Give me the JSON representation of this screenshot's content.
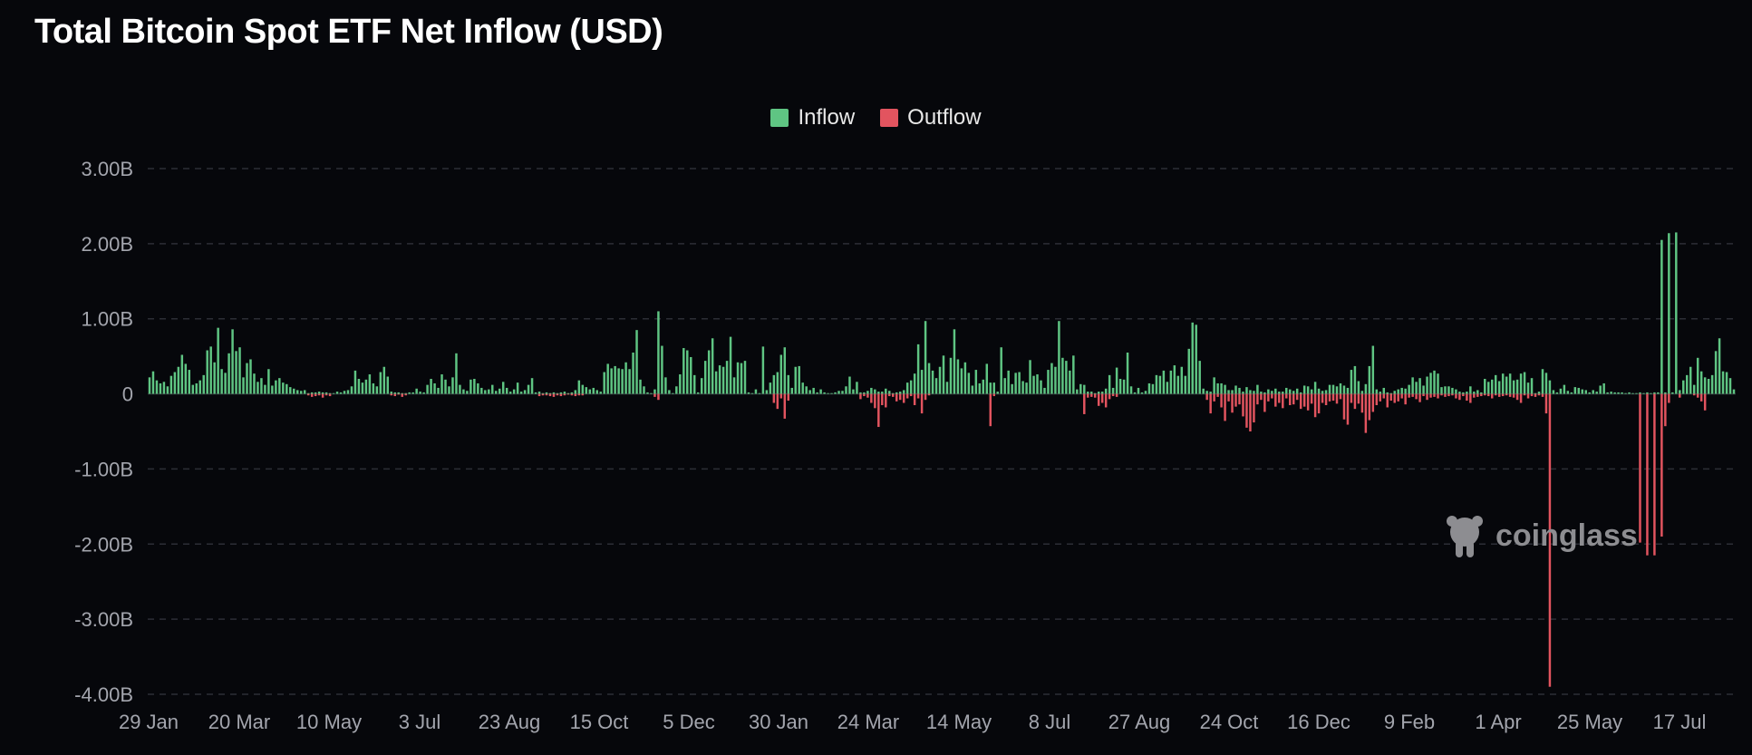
{
  "title": "Total Bitcoin Spot ETF Net Inflow (USD)",
  "legend": [
    {
      "label": "Inflow",
      "color": "#5fc583"
    },
    {
      "label": "Outflow",
      "color": "#e2545f"
    }
  ],
  "watermark": "coinglass",
  "chart_data": {
    "type": "bar",
    "title": "Total Bitcoin Spot ETF Net Inflow (USD)",
    "ylim": [
      -4.0,
      3.0
    ],
    "y_unit": "B",
    "yticks": [
      {
        "value": 3,
        "label": "3.00B"
      },
      {
        "value": 2,
        "label": "2.00B"
      },
      {
        "value": 1,
        "label": "1.00B"
      },
      {
        "value": 0,
        "label": "0"
      },
      {
        "value": -1,
        "label": "-1.00B"
      },
      {
        "value": -2,
        "label": "-2.00B"
      },
      {
        "value": -3,
        "label": "-3.00B"
      },
      {
        "value": -4,
        "label": "-4.00B"
      }
    ],
    "xticks": [
      "29 Jan",
      "20 Mar",
      "10 May",
      "3 Jul",
      "23 Aug",
      "15 Oct",
      "5 Dec",
      "30 Jan",
      "24 Mar",
      "14 May",
      "8 Jul",
      "27 Aug",
      "24 Oct",
      "16 Dec",
      "9 Feb",
      "1 Apr",
      "25 May",
      "17 Jul"
    ],
    "grid": true,
    "legend_position": "top-center",
    "series": [
      {
        "name": "Inflow",
        "color": "#5fc583",
        "values": [
          0.22,
          0.3,
          0.18,
          0.14,
          0.16,
          0.1,
          0.24,
          0.29,
          0.36,
          0.52,
          0.4,
          0.32,
          0.12,
          0.14,
          0.18,
          0.25,
          0.58,
          0.63,
          0.42,
          0.88,
          0.33,
          0.28,
          0.54,
          0.86,
          0.57,
          0.62,
          0.22,
          0.41,
          0.46,
          0.27,
          0.16,
          0.21,
          0.12,
          0.33,
          0.11,
          0.18,
          0.21,
          0.15,
          0.13,
          0.09,
          0.07,
          0.05,
          0.04,
          0.05,
          0.01,
          0.02,
          0.02,
          0.03,
          0.02,
          0.02,
          0.01,
          0.01,
          0.03,
          0.02,
          0.04,
          0.05,
          0.1,
          0.31,
          0.2,
          0.15,
          0.19,
          0.26,
          0.14,
          0.1,
          0.29,
          0.36,
          0.23,
          0.03,
          0.02,
          0.02,
          0.01,
          0.01,
          0.02,
          0.02,
          0.07,
          0.03,
          0.02,
          0.12,
          0.2,
          0.14,
          0.08,
          0.26,
          0.19,
          0.1,
          0.22,
          0.54,
          0.12,
          0.06,
          0.04,
          0.19,
          0.2,
          0.14,
          0.08,
          0.05,
          0.06,
          0.12,
          0.04,
          0.07,
          0.16,
          0.08,
          0.03,
          0.06,
          0.15,
          0.03,
          0.05,
          0.12,
          0.21,
          0.02,
          0.03,
          0.01,
          0.02,
          0.01,
          0.02,
          0.01,
          0.02,
          0.03,
          0.01,
          0.02,
          0.05,
          0.18,
          0.12,
          0.09,
          0.06,
          0.08,
          0.05,
          0.03,
          0.29,
          0.4,
          0.34,
          0.37,
          0.34,
          0.33,
          0.42,
          0.33,
          0.55,
          0.85,
          0.19,
          0.1,
          0.02,
          0.01,
          0.06,
          1.1,
          0.64,
          0.22,
          0.05,
          0.01,
          0.1,
          0.26,
          0.61,
          0.58,
          0.49,
          0.25,
          0.02,
          0.21,
          0.44,
          0.58,
          0.74,
          0.3,
          0.38,
          0.36,
          0.44,
          0.76,
          0.22,
          0.42,
          0.41,
          0.44,
          0.02,
          0.01,
          0.06,
          0.01,
          0.63,
          0.05,
          0.15,
          0.25,
          0.29,
          0.52,
          0.62,
          0.25,
          0.08,
          0.36,
          0.37,
          0.15,
          0.1,
          0.05,
          0.08,
          0.02,
          0.06,
          0.02,
          0.01,
          0.01,
          0.02,
          0.04,
          0.04,
          0.1,
          0.23,
          0.06,
          0.16,
          0.02,
          0.02,
          0.04,
          0.08,
          0.06,
          0.03,
          0.03,
          0.07,
          0.04,
          0.01,
          0.02,
          0.03,
          0.05,
          0.15,
          0.18,
          0.27,
          0.66,
          0.32,
          0.97,
          0.41,
          0.31,
          0.21,
          0.36,
          0.51,
          0.16,
          0.48,
          0.86,
          0.46,
          0.34,
          0.42,
          0.28,
          0.11,
          0.32,
          0.14,
          0.19,
          0.4,
          0.15,
          0.15,
          0.03,
          0.62,
          0.21,
          0.31,
          0.13,
          0.28,
          0.29,
          0.17,
          0.15,
          0.45,
          0.24,
          0.26,
          0.18,
          0.08,
          0.32,
          0.41,
          0.36,
          0.97,
          0.48,
          0.44,
          0.31,
          0.51,
          0.06,
          0.13,
          0.12,
          0.03,
          0.03,
          0.01,
          0.03,
          0.03,
          0.07,
          0.25,
          0.08,
          0.35,
          0.2,
          0.19,
          0.55,
          0.1,
          0.02,
          0.08,
          0.02,
          0.04,
          0.14,
          0.13,
          0.25,
          0.24,
          0.31,
          0.16,
          0.31,
          0.38,
          0.24,
          0.36,
          0.24,
          0.6,
          0.95,
          0.92,
          0.44,
          0.07,
          0.04,
          0.03,
          0.22,
          0.14,
          0.14,
          0.12,
          0.05,
          0.05,
          0.11,
          0.08,
          0.03,
          0.09,
          0.05,
          0.04,
          0.12,
          0.03,
          0.02,
          0.06,
          0.04,
          0.07,
          0.03,
          0.03,
          0.08,
          0.06,
          0.04,
          0.07,
          0.02,
          0.11,
          0.1,
          0.06,
          0.16,
          0.07,
          0.04,
          0.05,
          0.12,
          0.12,
          0.1,
          0.14,
          0.11,
          0.08,
          0.32,
          0.37,
          0.17,
          0.04,
          0.13,
          0.37,
          0.64,
          0.06,
          0.03,
          0.08,
          0.02,
          0.01,
          0.04,
          0.06,
          0.08,
          0.07,
          0.12,
          0.22,
          0.16,
          0.21,
          0.11,
          0.23,
          0.28,
          0.31,
          0.27,
          0.09,
          0.1,
          0.1,
          0.08,
          0.06,
          0.03,
          0.02,
          0.03,
          0.1,
          0.03,
          0.05,
          0.02,
          0.2,
          0.16,
          0.19,
          0.25,
          0.17,
          0.27,
          0.23,
          0.27,
          0.18,
          0.19,
          0.27,
          0.29,
          0.15,
          0.21,
          0.01,
          0.03,
          0.33,
          0.28,
          0.18,
          0.05,
          0.02,
          0.07,
          0.12,
          0.04,
          0.02,
          0.09,
          0.08,
          0.06,
          0.05,
          0.02,
          0.05,
          0.03,
          0.11,
          0.14,
          0.02,
          0.03,
          0.02,
          0.02,
          0.02,
          0.01,
          0.02,
          0.01,
          0.01,
          0.02,
          0.01,
          0.02,
          0.01,
          0.02,
          0.02,
          2.05,
          0.02,
          2.14,
          0.02,
          2.15,
          0.05,
          0.18,
          0.25,
          0.36,
          0.12,
          0.48,
          0.3,
          0.22,
          0.2,
          0.25,
          0.57,
          0.74,
          0.3,
          0.29,
          0.21,
          0.06
        ]
      },
      {
        "name": "Outflow",
        "color": "#e2545f",
        "values": [
          0,
          0,
          0,
          0,
          0,
          0,
          0,
          0,
          0,
          0,
          0,
          0,
          0,
          0,
          0,
          0,
          0,
          0,
          0,
          0,
          0,
          0,
          0,
          0,
          0,
          0,
          0,
          0,
          0,
          0,
          0,
          0,
          0,
          0,
          0,
          0,
          0,
          0,
          0,
          0,
          0,
          0,
          0,
          0,
          -0.02,
          -0.04,
          -0.03,
          -0.02,
          -0.05,
          -0.02,
          -0.03,
          0,
          0,
          0,
          0,
          0,
          0,
          0,
          0,
          0,
          0,
          0,
          0,
          0,
          0,
          0,
          0,
          -0.02,
          -0.03,
          -0.01,
          -0.04,
          -0.02,
          0,
          0,
          0,
          0,
          0,
          0,
          0,
          0,
          0,
          0,
          0,
          0,
          0,
          0,
          0,
          0,
          0,
          0,
          0,
          0,
          0,
          0,
          0,
          0,
          0,
          0,
          0,
          0,
          0,
          0,
          0,
          0,
          0,
          0,
          0,
          0,
          -0.03,
          -0.02,
          -0.02,
          -0.03,
          -0.04,
          -0.02,
          -0.03,
          -0.02,
          -0.01,
          -0.02,
          -0.03,
          -0.02,
          -0.02,
          0,
          0,
          0,
          0,
          0,
          0,
          0,
          0,
          0,
          0,
          0,
          0,
          0,
          0,
          0,
          0,
          0,
          0,
          0,
          -0.04,
          -0.08,
          0,
          0,
          0,
          0,
          0,
          0,
          0,
          0,
          0,
          0,
          0,
          0,
          0,
          0,
          0,
          0,
          0,
          0,
          0,
          0,
          0,
          0,
          0,
          0,
          0,
          0,
          0,
          0,
          0,
          0,
          0,
          -0.12,
          -0.2,
          -0.06,
          -0.33,
          -0.09,
          0,
          0,
          0,
          0,
          0,
          0,
          0,
          0,
          0,
          0,
          0,
          0,
          0,
          0,
          0,
          0,
          0,
          0,
          0,
          -0.07,
          -0.03,
          -0.05,
          -0.12,
          -0.19,
          -0.44,
          -0.15,
          -0.18,
          -0.03,
          -0.04,
          -0.1,
          -0.08,
          -0.12,
          -0.06,
          -0.03,
          -0.15,
          -0.06,
          -0.26,
          -0.08,
          -0.02,
          0,
          0,
          0,
          0,
          0,
          0,
          0,
          0,
          0,
          0,
          0,
          0,
          0,
          0,
          0,
          0,
          -0.43,
          -0.03,
          0,
          0,
          0,
          0,
          0,
          0,
          0,
          0,
          0,
          0,
          0,
          0,
          0,
          0,
          0,
          0,
          0,
          0,
          0,
          0,
          0,
          0,
          0,
          0,
          -0.27,
          -0.05,
          -0.04,
          -0.05,
          -0.16,
          -0.12,
          -0.18,
          -0.07,
          -0.03,
          -0.04,
          0,
          0,
          0,
          0,
          0,
          0,
          0,
          0,
          0,
          0,
          0,
          0,
          0,
          0,
          0,
          0,
          0,
          0,
          0,
          0,
          0,
          0,
          0,
          0,
          -0.08,
          -0.26,
          -0.1,
          -0.04,
          -0.18,
          -0.36,
          -0.1,
          -0.25,
          -0.17,
          -0.14,
          -0.3,
          -0.45,
          -0.5,
          -0.38,
          -0.14,
          -0.08,
          -0.24,
          -0.1,
          -0.06,
          -0.17,
          -0.12,
          -0.19,
          -0.06,
          -0.15,
          -0.14,
          -0.08,
          -0.2,
          -0.17,
          -0.22,
          -0.13,
          -0.31,
          -0.26,
          -0.12,
          -0.15,
          -0.1,
          -0.09,
          -0.13,
          -0.07,
          -0.34,
          -0.41,
          -0.12,
          -0.2,
          -0.13,
          -0.25,
          -0.52,
          -0.35,
          -0.24,
          -0.15,
          -0.1,
          -0.06,
          -0.18,
          -0.09,
          -0.12,
          -0.1,
          -0.06,
          -0.14,
          -0.05,
          -0.04,
          -0.07,
          -0.11,
          -0.03,
          -0.08,
          -0.05,
          -0.04,
          -0.06,
          -0.02,
          -0.04,
          -0.03,
          -0.02,
          -0.06,
          -0.08,
          -0.03,
          -0.09,
          -0.12,
          -0.05,
          -0.04,
          -0.03,
          -0.02,
          -0.03,
          -0.06,
          -0.02,
          -0.04,
          -0.03,
          -0.02,
          -0.04,
          -0.05,
          -0.08,
          -0.12,
          -0.02,
          -0.06,
          -0.03,
          -0.04,
          -0.02,
          -0.04,
          -0.26,
          -3.9,
          0,
          0,
          0,
          0,
          0,
          0,
          0,
          0,
          0,
          0,
          0,
          0,
          0,
          0,
          0,
          0,
          0,
          0,
          0,
          0,
          0,
          0,
          0,
          0,
          -1.98,
          0,
          -2.15,
          0,
          -2.15,
          0,
          -1.9,
          -0.43,
          -0.12,
          0,
          0,
          -0.05,
          0,
          0,
          0,
          -0.02,
          -0.05,
          -0.1,
          -0.22
        ]
      }
    ]
  }
}
